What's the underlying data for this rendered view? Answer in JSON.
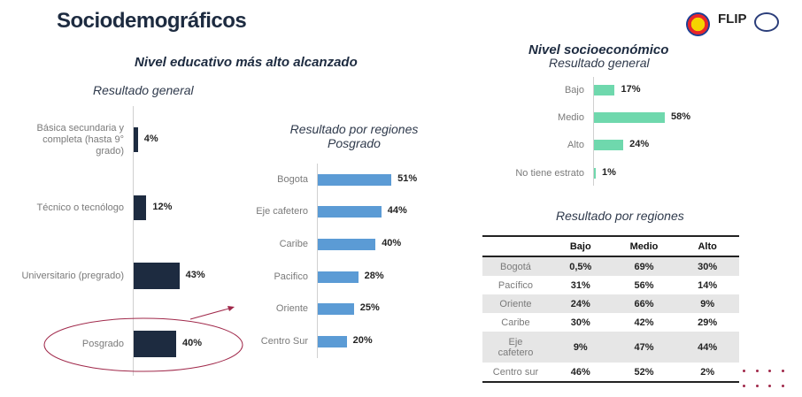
{
  "title": "Sociodemográficos",
  "logos": [
    "escudo-logo",
    "FLIP",
    "Cifras & Conceptos"
  ],
  "chart_data": [
    {
      "type": "bar",
      "orientation": "horizontal",
      "title": "Nivel educativo más alto alcanzado",
      "subtitle": "Resultado general",
      "categories": [
        "Básica secundaria y completa (hasta 9° grado)",
        "Técnico o tecnólogo",
        "Universitario (pregrado)",
        "Posgrado"
      ],
      "values": [
        4,
        12,
        43,
        40
      ],
      "labels": [
        "4%",
        "12%",
        "43%",
        "40%"
      ],
      "color": "#1d2b40",
      "highlight": "Posgrado"
    },
    {
      "type": "bar",
      "orientation": "horizontal",
      "title": "Resultado por regiones",
      "subtitle": "Posgrado",
      "categories": [
        "Bogota",
        "Eje cafetero",
        "Caribe",
        "Pacifico",
        "Oriente",
        "Centro Sur"
      ],
      "values": [
        51,
        44,
        40,
        28,
        25,
        20
      ],
      "labels": [
        "51%",
        "44%",
        "40%",
        "28%",
        "25%",
        "20%"
      ],
      "color": "#5b9bd5"
    },
    {
      "type": "bar",
      "orientation": "horizontal",
      "title": "Nivel socioeconómico",
      "subtitle": "Resultado general",
      "categories": [
        "Bajo",
        "Medio",
        "Alto",
        "No tiene estrato"
      ],
      "values": [
        17,
        58,
        24,
        1
      ],
      "labels": [
        "17%",
        "58%",
        "24%",
        "1%"
      ],
      "color": "#6fd8ad"
    },
    {
      "type": "table",
      "title": "Resultado por regiones",
      "columns": [
        "",
        "Bajo",
        "Medio",
        "Alto"
      ],
      "rows": [
        [
          "Bogotá",
          "0,5%",
          "69%",
          "30%"
        ],
        [
          "Pacífico",
          "31%",
          "56%",
          "14%"
        ],
        [
          "Oriente",
          "24%",
          "66%",
          "9%"
        ],
        [
          "Caribe",
          "30%",
          "42%",
          "29%"
        ],
        [
          "Eje cafetero",
          "9%",
          "47%",
          "44%"
        ],
        [
          "Centro sur",
          "46%",
          "52%",
          "2%"
        ]
      ]
    }
  ]
}
